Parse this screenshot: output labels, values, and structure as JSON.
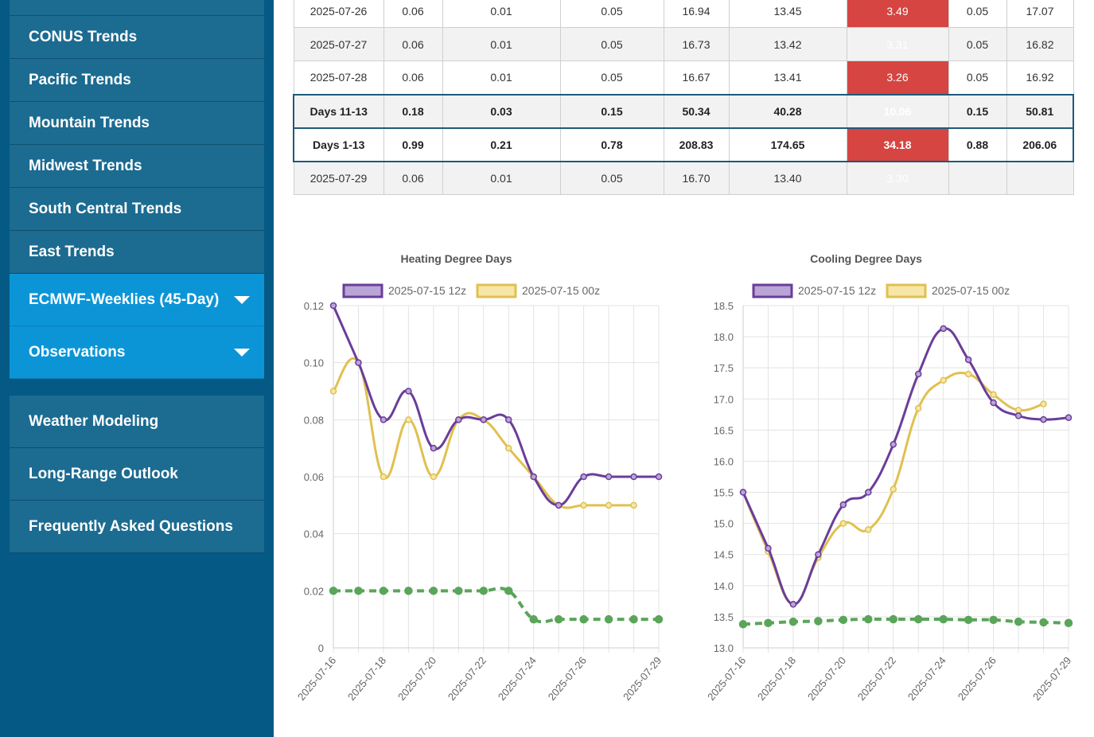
{
  "sidebar": {
    "items": [
      {
        "label": "CONUS Trends"
      },
      {
        "label": "Pacific Trends"
      },
      {
        "label": "Mountain Trends"
      },
      {
        "label": "Midwest Trends"
      },
      {
        "label": "South Central Trends"
      },
      {
        "label": "East Trends"
      },
      {
        "label": "ECMWF-Weeklies (45-Day)"
      },
      {
        "label": "Observations"
      }
    ],
    "secondary": [
      {
        "label": "Weather Modeling"
      },
      {
        "label": "Long-Range Outlook"
      },
      {
        "label": "Frequently Asked Questions"
      }
    ]
  },
  "table": {
    "rows": [
      {
        "cells": [
          "2025-07-26",
          "0.06",
          "0.01",
          "0.05",
          "16.94",
          "13.45",
          "3.49",
          "0.05",
          "17.07"
        ]
      },
      {
        "cells": [
          "2025-07-27",
          "0.06",
          "0.01",
          "0.05",
          "16.73",
          "13.42",
          "3.31",
          "0.05",
          "16.82"
        ]
      },
      {
        "cells": [
          "2025-07-28",
          "0.06",
          "0.01",
          "0.05",
          "16.67",
          "13.41",
          "3.26",
          "0.05",
          "16.92"
        ]
      },
      {
        "cells": [
          "Days 11-13",
          "0.18",
          "0.03",
          "0.15",
          "50.34",
          "40.28",
          "10.06",
          "0.15",
          "50.81"
        ]
      },
      {
        "cells": [
          "Days 1-13",
          "0.99",
          "0.21",
          "0.78",
          "208.83",
          "174.65",
          "34.18",
          "0.88",
          "206.06"
        ]
      },
      {
        "cells": [
          "2025-07-29",
          "0.06",
          "0.01",
          "0.05",
          "16.70",
          "13.40",
          "3.30",
          "",
          ""
        ]
      }
    ]
  },
  "colors": {
    "series_12z": "#6a3d9a",
    "series_00z": "#e0c050",
    "normal": "#5aa55a",
    "highlight": "#d64541"
  },
  "chart_data": [
    {
      "type": "line",
      "title": "Heating Degree Days",
      "x": [
        "2025-07-16",
        "2025-07-17",
        "2025-07-18",
        "2025-07-19",
        "2025-07-20",
        "2025-07-21",
        "2025-07-22",
        "2025-07-23",
        "2025-07-24",
        "2025-07-25",
        "2025-07-26",
        "2025-07-27",
        "2025-07-28",
        "2025-07-29"
      ],
      "x_tick_labels": [
        "2025-07-16",
        "2025-07-18",
        "2025-07-20",
        "2025-07-22",
        "2025-07-24",
        "2025-07-26",
        "2025-07-29"
      ],
      "y_tick_labels": [
        "0",
        "0.02",
        "0.04",
        "0.06",
        "0.08",
        "0.10",
        "0.12"
      ],
      "ylim": [
        0,
        0.12
      ],
      "series": [
        {
          "name": "2025-07-15 12z",
          "values": [
            0.12,
            0.1,
            0.08,
            0.09,
            0.07,
            0.08,
            0.08,
            0.08,
            0.06,
            0.05,
            0.06,
            0.06,
            0.06,
            0.06
          ]
        },
        {
          "name": "2025-07-15 00z",
          "values": [
            0.09,
            0.1,
            0.06,
            0.08,
            0.06,
            0.08,
            0.08,
            0.07,
            0.06,
            0.05,
            0.05,
            0.05,
            0.05,
            null
          ]
        },
        {
          "values": [
            0.02,
            0.02,
            0.02,
            0.02,
            0.02,
            0.02,
            0.02,
            0.02,
            0.01,
            0.01,
            0.01,
            0.01,
            0.01,
            0.01
          ]
        }
      ]
    },
    {
      "type": "line",
      "title": "Cooling Degree Days",
      "x": [
        "2025-07-16",
        "2025-07-17",
        "2025-07-18",
        "2025-07-19",
        "2025-07-20",
        "2025-07-21",
        "2025-07-22",
        "2025-07-23",
        "2025-07-24",
        "2025-07-25",
        "2025-07-26",
        "2025-07-27",
        "2025-07-28",
        "2025-07-29"
      ],
      "x_tick_labels": [
        "2025-07-16",
        "2025-07-18",
        "2025-07-20",
        "2025-07-22",
        "2025-07-24",
        "2025-07-26",
        "2025-07-29"
      ],
      "y_tick_labels": [
        "13.0",
        "13.5",
        "14.0",
        "14.5",
        "15.0",
        "15.5",
        "16.0",
        "16.5",
        "17.0",
        "17.5",
        "18.0",
        "18.5"
      ],
      "ylim": [
        13.0,
        18.5
      ],
      "series": [
        {
          "name": "2025-07-15 12z",
          "values": [
            15.5,
            14.6,
            13.7,
            14.5,
            15.3,
            15.5,
            16.27,
            17.4,
            18.13,
            17.63,
            16.94,
            16.73,
            16.67,
            16.7
          ]
        },
        {
          "name": "2025-07-15 00z",
          "values": [
            15.5,
            14.55,
            13.7,
            14.45,
            15.0,
            14.9,
            15.55,
            16.85,
            17.3,
            17.4,
            17.07,
            16.82,
            16.92,
            null
          ]
        },
        {
          "values": [
            13.38,
            13.4,
            13.42,
            13.43,
            13.45,
            13.46,
            13.46,
            13.46,
            13.46,
            13.45,
            13.45,
            13.42,
            13.41,
            13.4
          ]
        }
      ]
    }
  ]
}
